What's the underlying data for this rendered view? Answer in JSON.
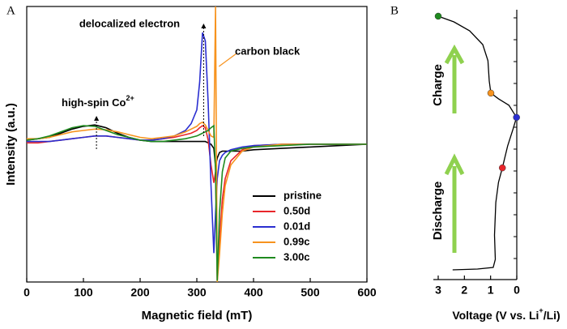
{
  "chart_data": [
    {
      "type": "line",
      "panel": "A",
      "x_label": "Magnetic field (mT)",
      "y_label": "Intensity (a.u.)",
      "xlim": [
        0,
        600
      ],
      "ylim": [
        -10,
        10
      ],
      "xticks": [
        0,
        100,
        200,
        300,
        400,
        500,
        600
      ],
      "annotations": {
        "delocalized": "delocalized electron",
        "high_spin": [
          "high-spin Co",
          "2+"
        ],
        "carbon": "carbon black"
      },
      "x": [
        0,
        20,
        40,
        60,
        80,
        100,
        120,
        140,
        160,
        180,
        200,
        220,
        240,
        260,
        280,
        290,
        300,
        305,
        310,
        315,
        320,
        325,
        330,
        333,
        336,
        340,
        345,
        350,
        360,
        380,
        400,
        450,
        500,
        550,
        600
      ],
      "series": [
        {
          "name": "pristine",
          "color": "#000000",
          "values": [
            0.3,
            0.4,
            0.5,
            0.8,
            1.1,
            1.3,
            1.4,
            1.2,
            0.8,
            0.5,
            0.3,
            0.2,
            0.2,
            0.2,
            0.2,
            0.2,
            0.2,
            0.2,
            0.2,
            0.2,
            0.1,
            0,
            -0.3,
            -1.6,
            -1.0,
            -0.6,
            -0.5,
            -0.5,
            -0.5,
            -0.5,
            -0.4,
            -0.3,
            -0.2,
            -0.1,
            0
          ]
        },
        {
          "name": "0.50d",
          "color": "#e8262b",
          "values": [
            0.1,
            0.1,
            0.2,
            0.3,
            0.4,
            0.5,
            0.6,
            0.6,
            0.5,
            0.4,
            0.3,
            0.3,
            0.4,
            0.5,
            0.7,
            0.8,
            1.0,
            1.2,
            1.35,
            1.2,
            0.3,
            -1.5,
            -2.8,
            -2.0,
            -9.9,
            -7,
            -4,
            -2.5,
            -1.2,
            -0.4,
            -0.1,
            0,
            0,
            0,
            0
          ]
        },
        {
          "name": "0.01d",
          "color": "#2a2ed0",
          "values": [
            0.2,
            0.2,
            0.2,
            0.3,
            0.4,
            0.5,
            0.6,
            0.6,
            0.5,
            0.4,
            0.3,
            0.3,
            0.4,
            0.6,
            1.0,
            1.5,
            2.5,
            4.5,
            8.1,
            7.5,
            3.0,
            -3.0,
            -7.9,
            -5.0,
            -2.5,
            -1.2,
            -0.8,
            -0.6,
            -0.4,
            -0.2,
            -0.1,
            0,
            0,
            0,
            0
          ]
        },
        {
          "name": "0.99c",
          "color": "#f7931e",
          "values": [
            0.4,
            0.4,
            0.5,
            0.7,
            0.9,
            1.0,
            1.1,
            1.05,
            0.9,
            0.7,
            0.5,
            0.4,
            0.5,
            0.6,
            0.9,
            1.1,
            1.3,
            1.5,
            1.6,
            1.4,
            1.0,
            0.6,
            0.5,
            10,
            -10,
            -8,
            -5,
            -3,
            -1.5,
            -0.5,
            -0.2,
            0,
            0,
            0,
            0
          ]
        },
        {
          "name": "3.00c",
          "color": "#1f8a1f",
          "values": [
            0.3,
            0.4,
            0.6,
            0.9,
            1.2,
            1.35,
            1.3,
            1.0,
            0.7,
            0.5,
            0.3,
            0.2,
            0.2,
            0.3,
            0.4,
            0.5,
            0.6,
            0.7,
            0.8,
            0.9,
            1.0,
            1.2,
            1.35,
            -2,
            -9.9,
            -5,
            -2,
            -1,
            -0.5,
            -0.3,
            -0.2,
            -0.1,
            0,
            0,
            0
          ]
        }
      ]
    },
    {
      "type": "line",
      "panel": "B",
      "x_label": [
        "Voltage (V vs. Li",
        "+",
        "/Li)"
      ],
      "labels": {
        "charge": "Charge",
        "discharge": "Discharge"
      },
      "xlim": [
        3,
        0
      ],
      "ylim": [
        0,
        100
      ],
      "xticks": [
        3,
        2,
        1,
        0
      ],
      "series": [
        {
          "color": "#000000",
          "x": [
            2.45,
            1.5,
            0.9,
            0.82,
            0.85,
            0.8,
            0.7,
            0.55,
            0.35,
            0.15,
            0.01,
            0.3,
            0.7,
            0.99,
            1.05,
            1.1,
            1.3,
            1.8,
            2.4,
            3.0
          ],
          "values": [
            3.6,
            3.9,
            4.5,
            7.5,
            16.5,
            28.5,
            36.0,
            41.4,
            49.5,
            55.5,
            60.1,
            64.6,
            67.0,
            69.1,
            73.6,
            81.1,
            87.1,
            92.2,
            95.5,
            97.6
          ]
        }
      ],
      "markers": {
        "x": [
          3.0,
          0.99,
          0.01,
          0.55
        ],
        "values": [
          97.6,
          69.1,
          60.1,
          41.4
        ],
        "colors": [
          "#1f8a1f",
          "#f7931e",
          "#2a2ed0",
          "#e8262b"
        ]
      }
    }
  ]
}
